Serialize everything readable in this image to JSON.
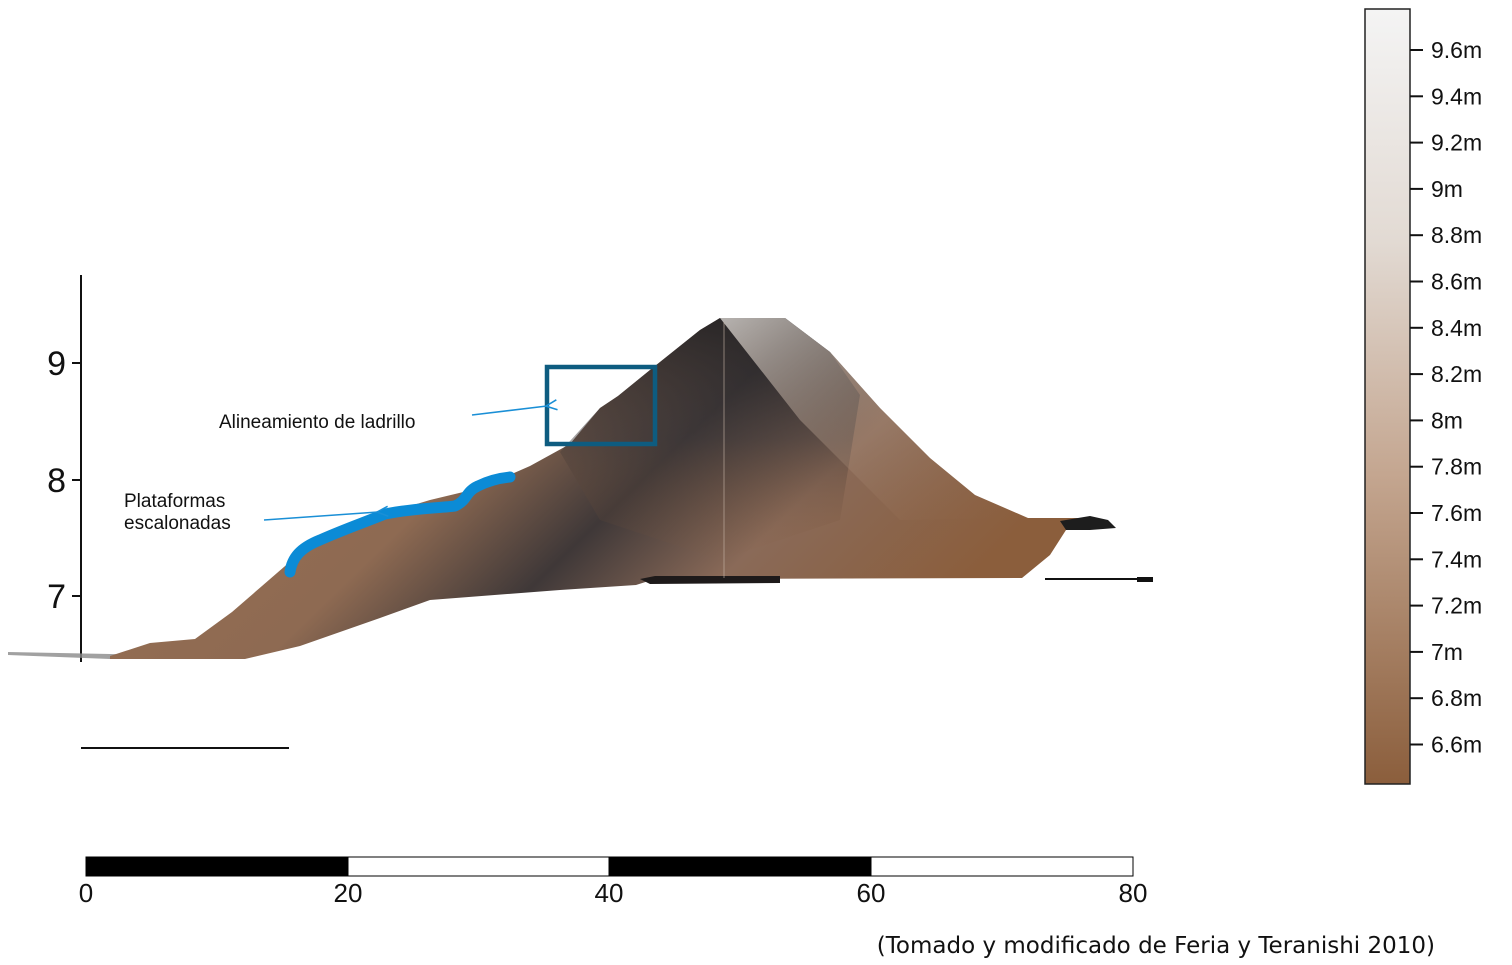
{
  "profile": {
    "y_axis_ticks": [
      "9",
      "8",
      "7"
    ],
    "colors": {
      "low": "#8b5e3c",
      "mid": "#a98262",
      "high": "#3d3535",
      "highlight_line": "#0b8bd6",
      "box": "#0e5c80",
      "arrow": "#1a8fd6"
    }
  },
  "annotations": {
    "brick_alignment": "Alineamiento de ladrillo",
    "terraces_line1": "Plataformas",
    "terraces_line2": "escalonadas"
  },
  "scale_bar": {
    "ticks": [
      "0",
      "20",
      "40",
      "60",
      "80"
    ]
  },
  "color_legend": {
    "labels": [
      "9.6m",
      "9.4m",
      "9.2m",
      "9m",
      "8.8m",
      "8.6m",
      "8.4m",
      "8.2m",
      "8m",
      "7.8m",
      "7.6m",
      "7.4m",
      "7.2m",
      "7m",
      "6.8m",
      "6.6m"
    ],
    "top_color": "#f4f4f4",
    "bottom_color": "#8b5e3c"
  },
  "source_note": "(Tomado y modificado de Feria y Teranishi 2010)"
}
